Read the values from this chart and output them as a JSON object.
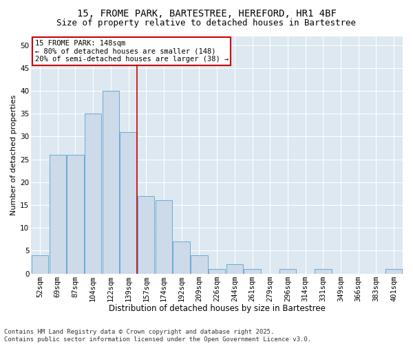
{
  "title1": "15, FROME PARK, BARTESTREE, HEREFORD, HR1 4BF",
  "title2": "Size of property relative to detached houses in Bartestree",
  "xlabel": "Distribution of detached houses by size in Bartestree",
  "ylabel": "Number of detached properties",
  "categories": [
    "52sqm",
    "69sqm",
    "87sqm",
    "104sqm",
    "122sqm",
    "139sqm",
    "157sqm",
    "174sqm",
    "192sqm",
    "209sqm",
    "226sqm",
    "244sqm",
    "261sqm",
    "279sqm",
    "296sqm",
    "314sqm",
    "331sqm",
    "349sqm",
    "366sqm",
    "383sqm",
    "401sqm"
  ],
  "values": [
    4,
    26,
    26,
    35,
    40,
    31,
    17,
    16,
    7,
    4,
    1,
    2,
    1,
    0,
    1,
    0,
    1,
    0,
    0,
    0,
    1
  ],
  "bar_color": "#ccdaea",
  "bar_edge_color": "#6aaad4",
  "vline_color": "#cc0000",
  "annotation_text": "15 FROME PARK: 148sqm\n← 80% of detached houses are smaller (148)\n20% of semi-detached houses are larger (38) →",
  "annotation_box_color": "#ffffff",
  "annotation_box_edge": "#cc0000",
  "ylim": [
    0,
    52
  ],
  "yticks": [
    0,
    5,
    10,
    15,
    20,
    25,
    30,
    35,
    40,
    45,
    50
  ],
  "background_color": "#dde8f0",
  "grid_color": "#ffffff",
  "fig_background": "#ffffff",
  "footer": "Contains HM Land Registry data © Crown copyright and database right 2025.\nContains public sector information licensed under the Open Government Licence v3.0.",
  "title1_fontsize": 10,
  "title2_fontsize": 9,
  "xlabel_fontsize": 8.5,
  "ylabel_fontsize": 8,
  "tick_fontsize": 7.5,
  "annotation_fontsize": 7.5,
  "footer_fontsize": 6.5
}
